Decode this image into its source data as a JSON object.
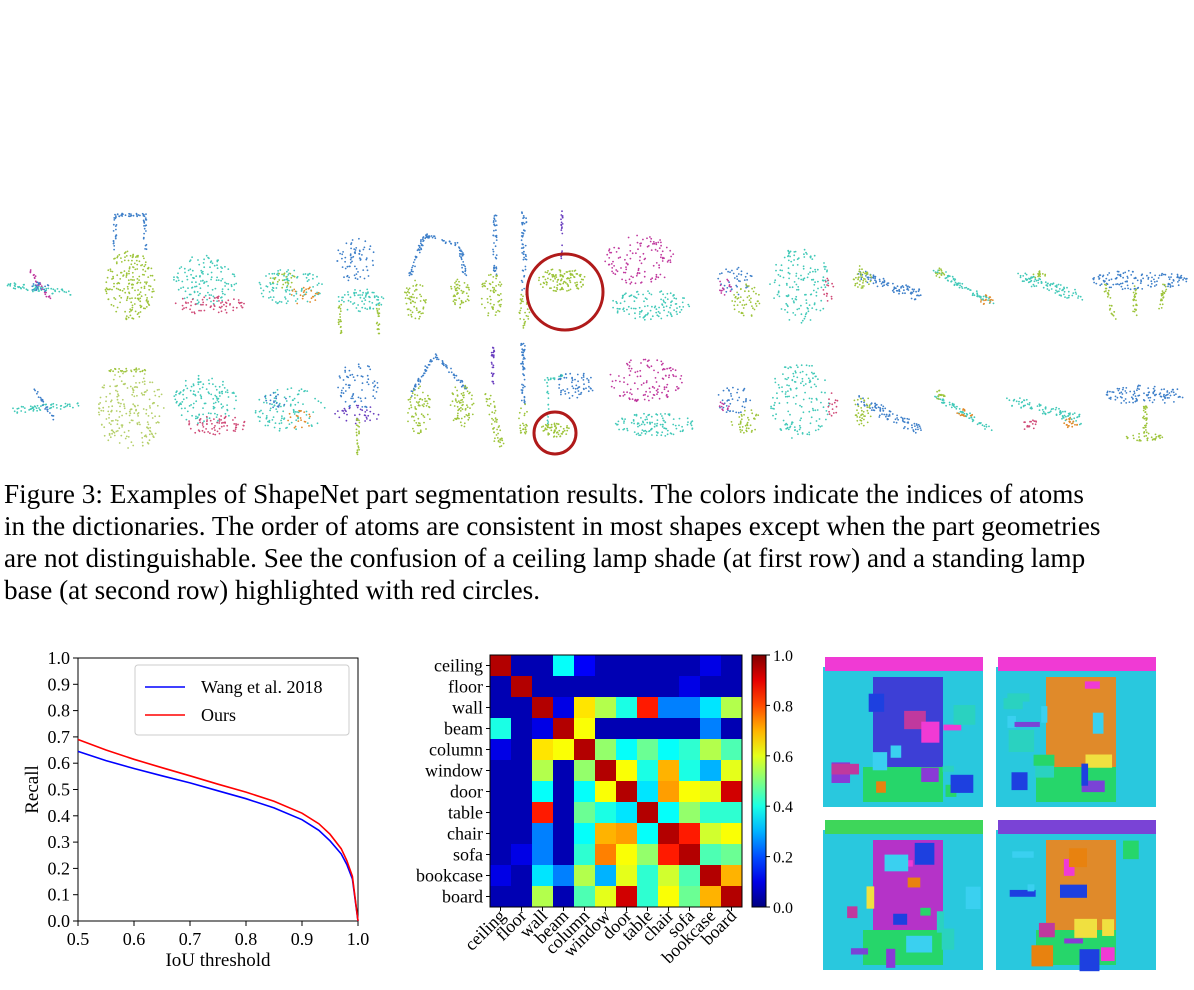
{
  "figure": {
    "caption_lines": [
      "Figure 3: Examples of ShapeNet part segmentation results. The colors indicate the indices of atoms",
      "in the dictionaries. The order of atoms are consistent in most shapes except when the part geometries",
      "are not distinguishable. See the confusion of a ceiling lamp shade (at first row) and a standing lamp",
      "base (at second row) highlighted with red circles."
    ],
    "highlight_color": "#b01a1a"
  },
  "chart_data": [
    {
      "type": "line",
      "xlabel": "IoU threshold",
      "ylabel": "Recall",
      "xlim": [
        0.5,
        1.0
      ],
      "ylim": [
        0.0,
        1.0
      ],
      "xticks": [
        "0.5",
        "0.6",
        "0.7",
        "0.8",
        "0.9",
        "1.0"
      ],
      "yticks": [
        "0.0",
        "0.1",
        "0.2",
        "0.3",
        "0.4",
        "0.5",
        "0.6",
        "0.7",
        "0.8",
        "0.9",
        "1.0"
      ],
      "legend_position": "top-right",
      "grid": false,
      "x": [
        0.5,
        0.55,
        0.6,
        0.65,
        0.7,
        0.75,
        0.8,
        0.85,
        0.9,
        0.93,
        0.95,
        0.97,
        0.98,
        0.99,
        1.0
      ],
      "series": [
        {
          "name": "Wang et al. 2018",
          "color": "#0000ff",
          "values": [
            0.645,
            0.61,
            0.58,
            0.552,
            0.525,
            0.495,
            0.465,
            0.43,
            0.385,
            0.345,
            0.305,
            0.255,
            0.215,
            0.16,
            0.0
          ]
        },
        {
          "name": "Ours",
          "color": "#ff0000",
          "values": [
            0.69,
            0.65,
            0.615,
            0.583,
            0.552,
            0.52,
            0.49,
            0.455,
            0.41,
            0.37,
            0.33,
            0.275,
            0.23,
            0.17,
            0.0
          ]
        }
      ]
    },
    {
      "type": "heatmap",
      "rows": [
        "ceiling",
        "floor",
        "wall",
        "beam",
        "column",
        "window",
        "door",
        "table",
        "chair",
        "sofa",
        "bookcase",
        "board"
      ],
      "columns": [
        "ceiling",
        "floor",
        "wall",
        "beam",
        "column",
        "window",
        "door",
        "table",
        "chair",
        "sofa",
        "bookcase",
        "board"
      ],
      "colorbar": {
        "min": 0.0,
        "max": 1.0,
        "ticks": [
          "0.0",
          "0.2",
          "0.4",
          "0.6",
          "0.8",
          "1.0"
        ],
        "colormap": "jet"
      },
      "values": [
        [
          0.95,
          0.05,
          0.05,
          0.38,
          0.12,
          0.05,
          0.05,
          0.05,
          0.05,
          0.05,
          0.1,
          0.05
        ],
        [
          0.05,
          0.95,
          0.05,
          0.05,
          0.05,
          0.05,
          0.05,
          0.05,
          0.05,
          0.1,
          0.05,
          0.05
        ],
        [
          0.05,
          0.05,
          0.95,
          0.1,
          0.65,
          0.55,
          0.4,
          0.85,
          0.25,
          0.25,
          0.35,
          0.55
        ],
        [
          0.4,
          0.05,
          0.1,
          0.95,
          0.62,
          0.05,
          0.05,
          0.05,
          0.05,
          0.05,
          0.25,
          0.05
        ],
        [
          0.1,
          0.05,
          0.65,
          0.62,
          0.95,
          0.52,
          0.38,
          0.48,
          0.38,
          0.42,
          0.55,
          0.45
        ],
        [
          0.05,
          0.05,
          0.55,
          0.05,
          0.52,
          0.95,
          0.62,
          0.4,
          0.7,
          0.4,
          0.3,
          0.6
        ],
        [
          0.05,
          0.05,
          0.38,
          0.05,
          0.38,
          0.62,
          0.95,
          0.35,
          0.72,
          0.62,
          0.6,
          0.92
        ],
        [
          0.05,
          0.05,
          0.85,
          0.05,
          0.48,
          0.4,
          0.35,
          0.95,
          0.38,
          0.52,
          0.42,
          0.42
        ],
        [
          0.05,
          0.05,
          0.25,
          0.05,
          0.38,
          0.7,
          0.72,
          0.38,
          0.95,
          0.85,
          0.58,
          0.62
        ],
        [
          0.05,
          0.1,
          0.25,
          0.05,
          0.42,
          0.75,
          0.62,
          0.52,
          0.85,
          0.95,
          0.45,
          0.48
        ],
        [
          0.1,
          0.05,
          0.35,
          0.25,
          0.55,
          0.3,
          0.6,
          0.42,
          0.58,
          0.45,
          0.95,
          0.7
        ],
        [
          0.05,
          0.05,
          0.55,
          0.05,
          0.45,
          0.6,
          0.92,
          0.42,
          0.62,
          0.48,
          0.7,
          0.95
        ]
      ]
    }
  ],
  "palette": {
    "green": "#9dc43a",
    "teal": "#41c9b8",
    "blue": "#3d7fc9",
    "magenta": "#c0399e",
    "pink": "#d04a77",
    "purple": "#6a3fbf",
    "orange": "#e08a2a"
  }
}
